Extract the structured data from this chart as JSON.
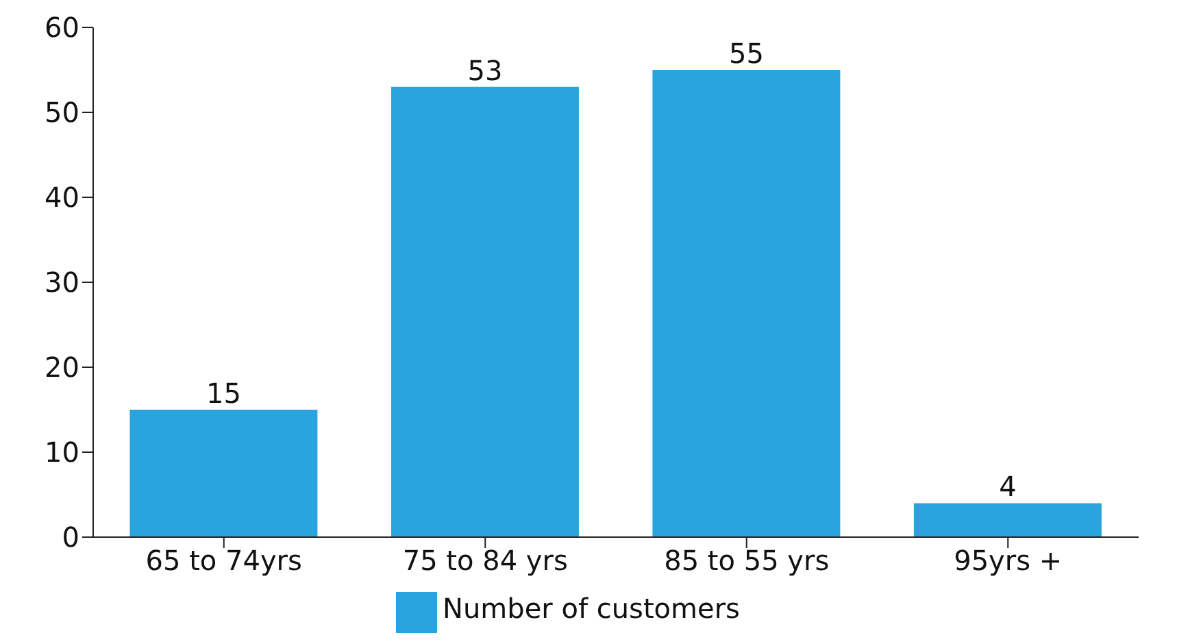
{
  "chart_data": {
    "type": "bar",
    "categories": [
      "65 to 74yrs",
      "75 to 84 yrs",
      "85 to 55 yrs",
      "95yrs +"
    ],
    "series": [
      {
        "name": "Number of customers",
        "color": "#2aa4de",
        "values": [
          15,
          53,
          55,
          4
        ]
      }
    ],
    "ylim": [
      0,
      60
    ],
    "yticks": [
      0,
      10,
      20,
      30,
      40,
      50,
      60
    ],
    "data_labels": true,
    "grid": false,
    "legend": "bottom"
  }
}
